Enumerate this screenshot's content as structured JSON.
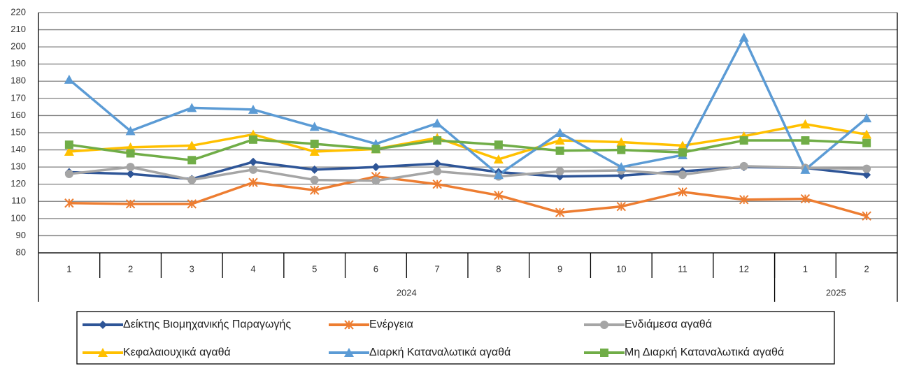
{
  "chart_data": {
    "type": "line",
    "categories": [
      "1",
      "2",
      "3",
      "4",
      "5",
      "6",
      "7",
      "8",
      "9",
      "10",
      "11",
      "12",
      "1",
      "2"
    ],
    "category_groups": [
      {
        "label": "2024",
        "count": 12
      },
      {
        "label": "2025",
        "count": 2
      }
    ],
    "ylim": [
      80,
      220
    ],
    "yticks": [
      80,
      90,
      100,
      110,
      120,
      130,
      140,
      150,
      160,
      170,
      180,
      190,
      200,
      210,
      220
    ],
    "grid": true,
    "series": [
      {
        "name": "Δείκτης Βιομηχανικής Παραγωγής",
        "color": "#2e5597",
        "marker": "diamond",
        "values": [
          127,
          126,
          123,
          133,
          128.5,
          130,
          132,
          127,
          124.5,
          125,
          127.5,
          130,
          129.5,
          125.5
        ]
      },
      {
        "name": "Ενέργεια",
        "color": "#ed7d31",
        "marker": "star",
        "values": [
          109,
          108.5,
          108.5,
          121,
          116.5,
          124.5,
          120,
          113.5,
          103.5,
          107,
          115.5,
          111,
          111.5,
          101.5
        ]
      },
      {
        "name": "Ενδιάμεσα αγαθά",
        "color": "#a5a5a5",
        "marker": "circle",
        "values": [
          126,
          130,
          122.5,
          128.5,
          122.5,
          122,
          127.5,
          124.5,
          127.5,
          128,
          125.5,
          130.5,
          129.5,
          129
        ]
      },
      {
        "name": "Κεφαλαιουχικά αγαθά",
        "color": "#ffc000",
        "marker": "triangle",
        "values": [
          139,
          141.5,
          142.5,
          149,
          139,
          140.5,
          147,
          134.5,
          145.5,
          144.5,
          142.5,
          148,
          155,
          149
        ]
      },
      {
        "name": "Διαρκή Καταναλωτικά αγαθά",
        "color": "#5b9bd5",
        "marker": "triangle",
        "values": [
          181,
          151,
          164.5,
          163.5,
          153.5,
          143.5,
          155.5,
          125.5,
          150,
          130,
          137,
          205.5,
          128.5,
          158.5
        ]
      },
      {
        "name": "Μη Διαρκή Καταναλωτικά αγαθά",
        "color": "#70ad47",
        "marker": "square",
        "values": [
          143,
          138,
          134,
          146,
          143.5,
          140.5,
          145.5,
          143,
          139.5,
          140,
          138.5,
          145.5,
          145.5,
          144
        ]
      }
    ]
  }
}
